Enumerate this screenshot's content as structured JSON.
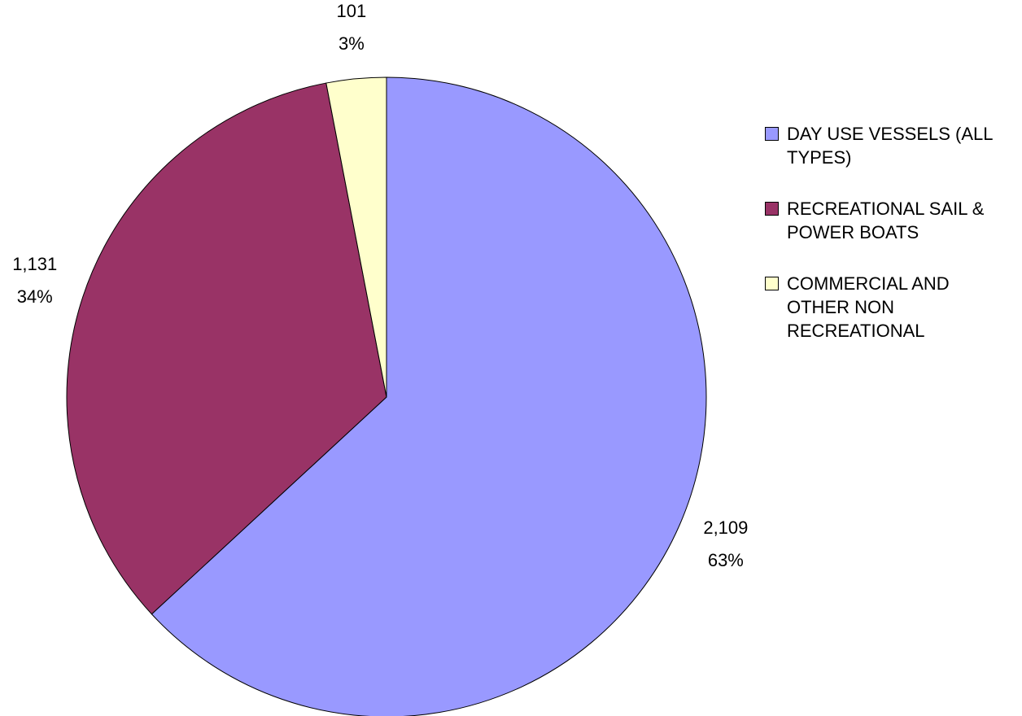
{
  "chart_data": {
    "type": "pie",
    "categories": [
      "DAY USE VESSELS (ALL TYPES)",
      "RECREATIONAL SAIL & POWER BOATS",
      "COMMERCIAL AND OTHER NON RECREATIONAL"
    ],
    "values": [
      2109,
      1131,
      101
    ],
    "value_labels": [
      "2,109",
      "1,131",
      "101"
    ],
    "percentages": [
      63,
      34,
      3
    ],
    "percentage_labels": [
      "63%",
      "34%",
      "3%"
    ],
    "colors": [
      "#9999ff",
      "#993366",
      "#ffffcc"
    ],
    "legend": "right"
  }
}
